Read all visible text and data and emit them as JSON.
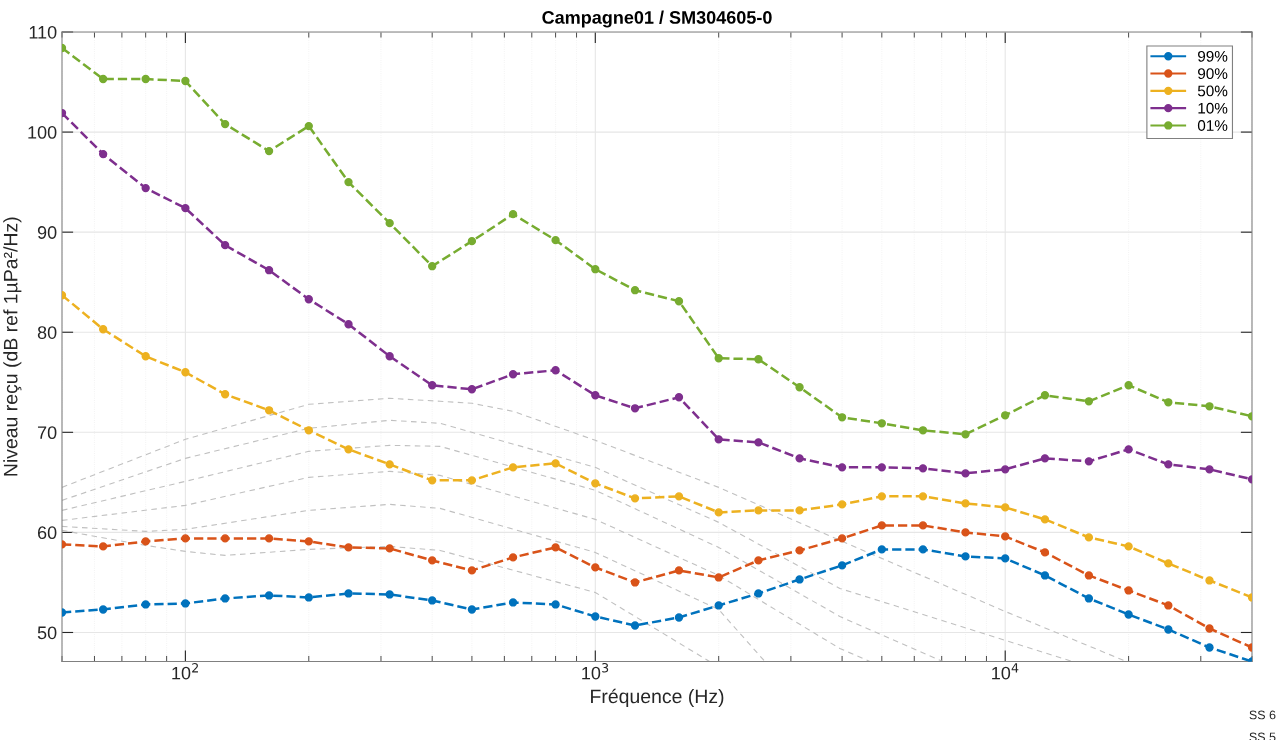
{
  "chart_data": {
    "type": "line",
    "title": "Campagne01 / SM304605-0",
    "xlabel": "Fréquence (Hz)",
    "ylabel": "Niveau reçu (dB ref 1µPa²/Hz)",
    "x": [
      50,
      63,
      80,
      100,
      125,
      160,
      200,
      250,
      315,
      400,
      500,
      630,
      800,
      1000,
      1250,
      1600,
      2000,
      2500,
      3150,
      4000,
      5000,
      6300,
      8000,
      10000,
      12500,
      16000,
      20000,
      25000,
      31500,
      40000
    ],
    "series": [
      {
        "name": "99%",
        "color": "#0072bd",
        "values": [
          52.0,
          52.3,
          52.8,
          52.9,
          53.4,
          53.7,
          53.5,
          53.9,
          53.8,
          53.2,
          52.3,
          53.0,
          52.8,
          51.6,
          50.7,
          51.5,
          52.7,
          53.9,
          55.3,
          56.7,
          58.3,
          58.3,
          57.6,
          57.4,
          55.7,
          53.4,
          51.8,
          50.3,
          48.5,
          47.1
        ]
      },
      {
        "name": "90%",
        "color": "#d95319",
        "values": [
          58.8,
          58.6,
          59.1,
          59.4,
          59.4,
          59.4,
          59.1,
          58.5,
          58.4,
          57.2,
          56.2,
          57.5,
          58.5,
          56.5,
          55.0,
          56.2,
          55.5,
          57.2,
          58.2,
          59.4,
          60.7,
          60.7,
          60.0,
          59.6,
          58.0,
          55.7,
          54.2,
          52.7,
          50.4,
          48.5
        ]
      },
      {
        "name": "50%",
        "color": "#edb120",
        "values": [
          83.7,
          80.3,
          77.6,
          76.0,
          73.8,
          72.2,
          70.2,
          68.3,
          66.8,
          65.2,
          65.2,
          66.5,
          66.9,
          64.9,
          63.4,
          63.6,
          62.0,
          62.2,
          62.2,
          62.8,
          63.6,
          63.6,
          62.9,
          62.5,
          61.3,
          59.5,
          58.6,
          56.9,
          55.2,
          53.5
        ]
      },
      {
        "name": "10%",
        "color": "#7e2f8e",
        "values": [
          101.9,
          97.8,
          94.4,
          92.4,
          88.7,
          86.2,
          83.3,
          80.8,
          77.6,
          74.7,
          74.3,
          75.8,
          76.2,
          73.7,
          72.4,
          73.5,
          69.3,
          69.0,
          67.4,
          66.5,
          66.5,
          66.4,
          65.9,
          66.3,
          67.4,
          67.1,
          68.3,
          66.8,
          66.3,
          65.3
        ]
      },
      {
        "name": "01%",
        "color": "#77ac30",
        "values": [
          108.4,
          105.3,
          105.3,
          105.1,
          100.8,
          98.1,
          100.6,
          95.0,
          90.9,
          86.6,
          89.1,
          91.8,
          89.2,
          86.3,
          84.2,
          83.1,
          77.4,
          77.3,
          74.5,
          71.5,
          70.9,
          70.2,
          69.8,
          71.7,
          73.7,
          73.1,
          74.7,
          73.0,
          72.6,
          71.6
        ]
      },
      {
        "color": "#c0c0c0",
        "marker": "none",
        "x": [
          50,
          100,
          200,
          315,
          418,
          500,
          630,
          1000,
          2000,
          3950,
          10000,
          19750
        ],
        "values": [
          64.5,
          69.3,
          72.8,
          73.4,
          73.1,
          72.9,
          72.1,
          69.2,
          64.5,
          59.2,
          52.1,
          47.1
        ]
      },
      {
        "color": "#c0c0c0",
        "marker": "none",
        "x": [
          50,
          100,
          200,
          315,
          418,
          1000,
          2000,
          3950,
          14600
        ],
        "values": [
          63.2,
          67.4,
          70.4,
          71.2,
          70.9,
          66.5,
          61.0,
          54.4,
          47.1
        ]
      },
      {
        "color": "#c0c0c0",
        "marker": "none",
        "x": [
          50,
          100,
          200,
          315,
          418,
          1000,
          2000,
          3950,
          7040
        ],
        "values": [
          62.2,
          65.1,
          68.1,
          68.7,
          68.6,
          64.2,
          58.5,
          51.6,
          47.1
        ]
      },
      {
        "color": "#c0c0c0",
        "marker": "none",
        "x": [
          50,
          100,
          200,
          315,
          418,
          1000,
          2000,
          3950,
          4675
        ],
        "values": [
          61.2,
          62.7,
          65.5,
          66.1,
          65.7,
          61.3,
          55.7,
          48.4,
          47.1
        ]
      },
      {
        "color": "#c0c0c0",
        "marker": "none",
        "x": [
          50,
          80,
          100,
          200,
          315,
          418,
          1000,
          2000,
          2593
        ],
        "values": [
          60.6,
          60.1,
          60.3,
          62.2,
          62.8,
          62.4,
          58.0,
          52.3,
          47.1
        ]
      },
      {
        "color": "#c0c0c0",
        "marker": "none",
        "x": [
          50,
          80,
          100,
          125,
          200,
          315,
          418,
          1000,
          1900
        ],
        "values": [
          60.2,
          58.7,
          58.1,
          57.7,
          58.3,
          58.6,
          58.2,
          54.0,
          47.1
        ]
      }
    ],
    "log": "x",
    "xlim": [
      50,
      40000
    ],
    "xticks": [
      {
        "value": 100,
        "label": "10$^{2}$"
      },
      {
        "value": 1000,
        "label": "10$^{3}$"
      },
      {
        "value": 10000,
        "label": "10$^{4}$"
      }
    ],
    "ylim": [
      47.1,
      110
    ],
    "yticks": [
      50,
      60,
      70,
      80,
      90,
      100,
      110
    ],
    "grid": true,
    "legend": "top right",
    "marker": "circle",
    "line_style": "dashed",
    "annotations": [
      "SS 6",
      "SS 5"
    ]
  }
}
